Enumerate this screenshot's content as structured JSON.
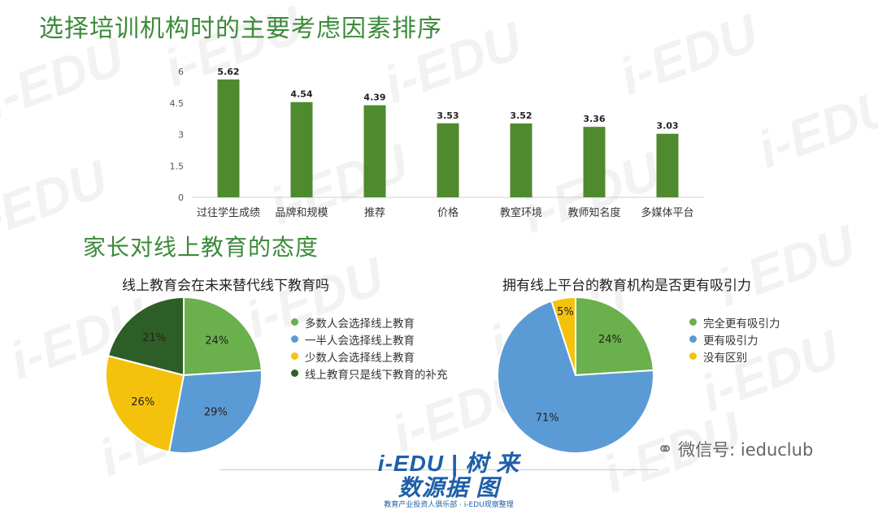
{
  "titles": {
    "main": "选择培训机构时的主要考虑因素排序",
    "section2": "家长对线上教育的态度"
  },
  "chart_data": [
    {
      "type": "bar",
      "title": "",
      "categories": [
        "过往学生成绩",
        "品牌和规模",
        "推荐",
        "价格",
        "教室环境",
        "教师知名度",
        "多媒体平台"
      ],
      "values": [
        5.62,
        4.54,
        4.39,
        3.53,
        3.52,
        3.36,
        3.03
      ],
      "data_labels": [
        "5.62",
        "4.54",
        "4.39",
        "3.53",
        "3.52",
        "3.36",
        "3.03"
      ],
      "yticks": [
        "0",
        "1.5",
        "3",
        "4.5",
        "6"
      ],
      "ylim": [
        0,
        6
      ],
      "grid": false,
      "bar_color": "#4f8a2e"
    },
    {
      "type": "pie",
      "title": "线上教育会在未来替代线下教育吗",
      "labels": [
        "多数人会选择线上教育",
        "一半人会选择线上教育",
        "少数人会选择线上教育",
        "线上教育只是线下教育的补充"
      ],
      "values": [
        24,
        29,
        26,
        21
      ],
      "value_labels": [
        "24%",
        "29%",
        "26%",
        "21%"
      ],
      "colors": [
        "#6ab04c",
        "#5b9bd5",
        "#f4c20d",
        "#2e5e27"
      ],
      "legend": "right"
    },
    {
      "type": "pie",
      "title": "拥有线上平台的教育机构是否更有吸引力",
      "labels": [
        "完全更有吸引力",
        "更有吸引力",
        "没有区别"
      ],
      "values": [
        24,
        71,
        5
      ],
      "value_labels": [
        "24%",
        "71%",
        "5%"
      ],
      "colors": [
        "#6ab04c",
        "#5b9bd5",
        "#f4c20d"
      ],
      "legend": "right"
    }
  ],
  "watermark": "i-EDU",
  "footer": {
    "logo": "i-EDU | 树 来数源据 图",
    "logo_sub": "教育产业投资人俱乐部 · i-EDU观察整理",
    "wechat_icon": "wechat-icon",
    "wechat": "微信号: ieduclub"
  }
}
